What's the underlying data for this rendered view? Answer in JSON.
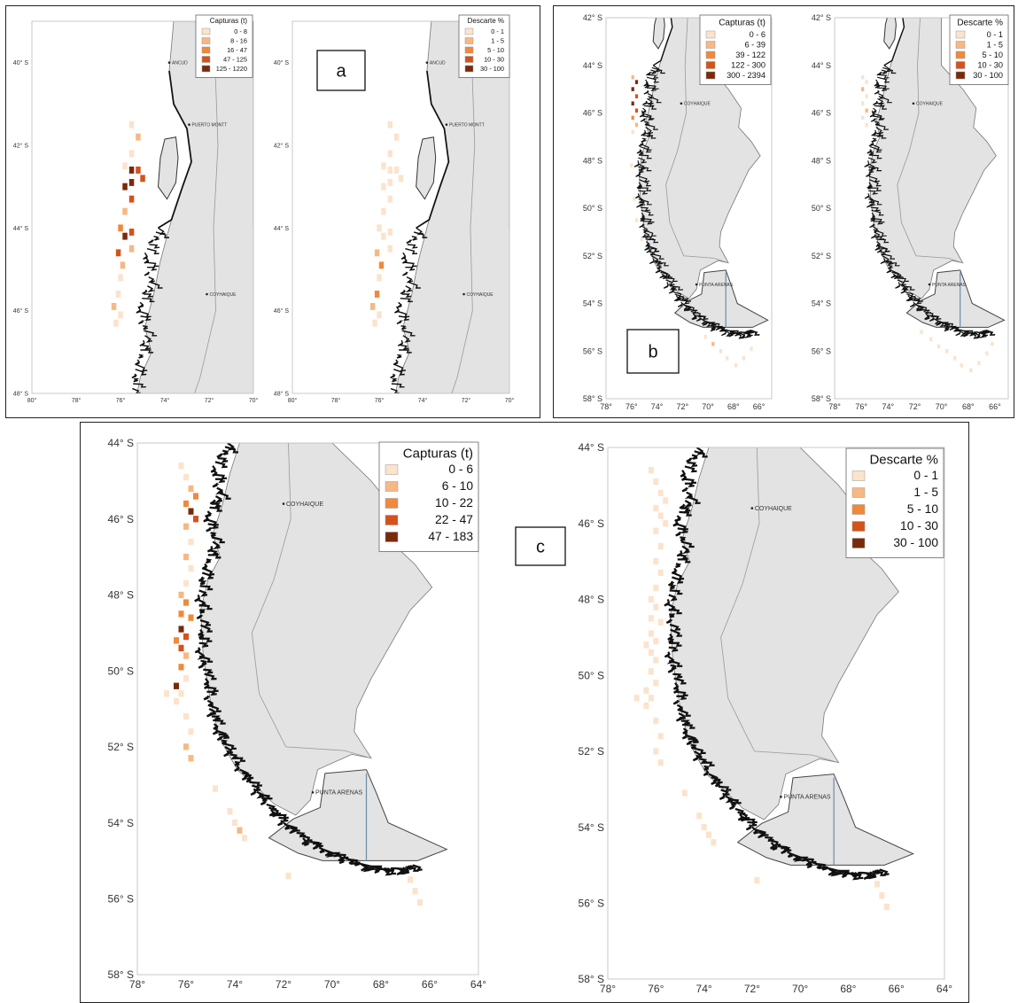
{
  "colors": {
    "land": "#e3e3e3",
    "coast": "#111111",
    "class1": "#fbe3cc",
    "class2": "#f7b883",
    "class3": "#f0893a",
    "class4": "#d5521a",
    "class5": "#7a2a0a"
  },
  "tags": {
    "a": "a",
    "b": "b",
    "c": "c"
  },
  "axis_text": {
    "a": {
      "lat": [
        "40° S",
        "42° S",
        "44° S",
        "46° S",
        "48° S"
      ],
      "lon": [
        "80°",
        "78°",
        "76°",
        "74°",
        "72°",
        "70°"
      ]
    },
    "b": {
      "lat": [
        "42° S",
        "44° S",
        "46° S",
        "48° S",
        "50° S",
        "52° S",
        "54° S",
        "56° S",
        "58° S"
      ],
      "lon": [
        "78°",
        "76°",
        "74°",
        "72°",
        "70°",
        "68°",
        "66°"
      ]
    },
    "c": {
      "lat": [
        "44° S",
        "46° S",
        "48° S",
        "50° S",
        "52° S",
        "54° S",
        "56° S",
        "58° S"
      ],
      "lon": [
        "78°",
        "76°",
        "74°",
        "72°",
        "70°",
        "68°",
        "66°",
        "64°"
      ]
    }
  },
  "cities": {
    "ancud": "ANCUD",
    "puerto_montt": "PUERTO MONTT",
    "coyhaique_a": "COYHAIQUE",
    "coyhaique_b": "COYHAIQUE",
    "coyhaique_c": "COYHAIQUE",
    "punta_arenas": "PUNTA ARENAS"
  },
  "legends": {
    "a_capturas": {
      "title": "Capturas  (t)",
      "items": [
        "0 - 8",
        "8 - 16",
        "16 - 47",
        "47 - 125",
        "125 - 1220"
      ]
    },
    "a_descarte": {
      "title": "Descarte %",
      "items": [
        "0 - 1",
        "1 - 5",
        "5 - 10",
        "10 - 30",
        "30 - 100"
      ]
    },
    "b_capturas": {
      "title": "Capturas  (t)",
      "items": [
        "0 - 6",
        "6 - 39",
        "39 - 122",
        "122 - 300",
        "300 - 2394"
      ]
    },
    "b_descarte": {
      "title": "Descarte %",
      "items": [
        "0 - 1",
        "1 - 5",
        "5 - 10",
        "10 - 30",
        "30 - 100"
      ]
    },
    "c_capturas": {
      "title": "Capturas  (t)",
      "items": [
        "0 - 6",
        "6 - 10",
        "10 - 22",
        "22 - 47",
        "47 - 183"
      ]
    },
    "c_descarte": {
      "title": "Descarte %",
      "items": [
        "0 - 1",
        "1 - 5",
        "5 - 10",
        "10 - 30",
        "30 - 100"
      ]
    }
  },
  "maps": [
    {
      "id": "a-capturas",
      "lon_range": [
        -80,
        -70
      ],
      "lat_range": [
        -48,
        -39
      ],
      "cells": [
        [
          -75.5,
          -41.5,
          1
        ],
        [
          -75.2,
          -41.8,
          2
        ],
        [
          -75.5,
          -42.2,
          1
        ],
        [
          -75.8,
          -42.5,
          1
        ],
        [
          -75.5,
          -42.6,
          5
        ],
        [
          -75.2,
          -42.6,
          4
        ],
        [
          -75.0,
          -42.8,
          4
        ],
        [
          -75.5,
          -42.9,
          5
        ],
        [
          -75.8,
          -43.0,
          5
        ],
        [
          -75.5,
          -43.3,
          4
        ],
        [
          -75.8,
          -43.6,
          2
        ],
        [
          -76.0,
          -44.0,
          3
        ],
        [
          -75.8,
          -44.2,
          5
        ],
        [
          -75.5,
          -44.1,
          4
        ],
        [
          -75.5,
          -44.5,
          2
        ],
        [
          -76.1,
          -44.6,
          4
        ],
        [
          -75.9,
          -44.9,
          2
        ],
        [
          -76.0,
          -45.2,
          1
        ],
        [
          -76.1,
          -45.6,
          1
        ],
        [
          -76.3,
          -45.9,
          2
        ],
        [
          -76.0,
          -46.1,
          1
        ],
        [
          -76.2,
          -46.3,
          1
        ]
      ]
    },
    {
      "id": "a-descarte",
      "lon_range": [
        -80,
        -70
      ],
      "lat_range": [
        -48,
        -39
      ],
      "cells": [
        [
          -75.5,
          -41.5,
          1
        ],
        [
          -75.2,
          -41.8,
          1
        ],
        [
          -75.5,
          -42.2,
          1
        ],
        [
          -75.8,
          -42.5,
          1
        ],
        [
          -75.5,
          -42.6,
          1
        ],
        [
          -75.2,
          -42.6,
          1
        ],
        [
          -75.0,
          -42.8,
          1
        ],
        [
          -75.5,
          -42.9,
          1
        ],
        [
          -75.8,
          -43.0,
          1
        ],
        [
          -75.5,
          -43.3,
          1
        ],
        [
          -75.8,
          -43.6,
          1
        ],
        [
          -76.0,
          -44.0,
          1
        ],
        [
          -75.8,
          -44.2,
          1
        ],
        [
          -75.5,
          -44.1,
          1
        ],
        [
          -75.5,
          -44.5,
          1
        ],
        [
          -76.1,
          -44.6,
          2
        ],
        [
          -75.9,
          -44.9,
          3
        ],
        [
          -76.0,
          -45.2,
          1
        ],
        [
          -76.1,
          -45.6,
          3
        ],
        [
          -76.3,
          -45.9,
          2
        ],
        [
          -76.0,
          -46.1,
          1
        ],
        [
          -76.2,
          -46.3,
          1
        ]
      ]
    },
    {
      "id": "b-capturas",
      "lon_range": [
        -78,
        -65
      ],
      "lat_range": [
        -58,
        -42
      ],
      "cells": [
        [
          -75.9,
          -44.5,
          2
        ],
        [
          -75.6,
          -44.7,
          5
        ],
        [
          -75.9,
          -45.0,
          5
        ],
        [
          -75.6,
          -45.3,
          4
        ],
        [
          -75.9,
          -45.6,
          5
        ],
        [
          -75.6,
          -45.9,
          4
        ],
        [
          -75.9,
          -46.2,
          3
        ],
        [
          -75.6,
          -46.5,
          2
        ],
        [
          -75.9,
          -46.8,
          1
        ],
        [
          -76.0,
          -48.2,
          1
        ],
        [
          -75.8,
          -49.6,
          1
        ],
        [
          -75.6,
          -50.5,
          1
        ],
        [
          -75.2,
          -51.3,
          1
        ],
        [
          -70.2,
          -55.4,
          1
        ],
        [
          -69.6,
          -55.7,
          2
        ],
        [
          -69.0,
          -56.0,
          1
        ],
        [
          -68.5,
          -56.3,
          1
        ],
        [
          -67.8,
          -56.6,
          1
        ],
        [
          -67.2,
          -56.3,
          1
        ],
        [
          -66.6,
          -55.9,
          1
        ]
      ]
    },
    {
      "id": "b-descarte",
      "lon_range": [
        -78,
        -65
      ],
      "lat_range": [
        -58,
        -42
      ],
      "cells": [
        [
          -75.9,
          -44.5,
          1
        ],
        [
          -75.6,
          -44.7,
          1
        ],
        [
          -75.9,
          -45.0,
          2
        ],
        [
          -75.6,
          -45.3,
          1
        ],
        [
          -75.9,
          -45.6,
          1
        ],
        [
          -75.6,
          -45.9,
          2
        ],
        [
          -75.9,
          -46.2,
          1
        ],
        [
          -75.6,
          -46.5,
          1
        ],
        [
          -71.5,
          -55.2,
          1
        ],
        [
          -70.8,
          -55.5,
          1
        ],
        [
          -70.2,
          -55.8,
          1
        ],
        [
          -69.6,
          -56.0,
          1
        ],
        [
          -69.0,
          -56.3,
          1
        ],
        [
          -68.5,
          -56.6,
          1
        ],
        [
          -67.8,
          -56.8,
          1
        ],
        [
          -67.2,
          -56.5,
          1
        ],
        [
          -66.6,
          -56.1,
          1
        ],
        [
          -66.2,
          -55.7,
          1
        ]
      ]
    },
    {
      "id": "c-capturas",
      "lon_range": [
        -78,
        -64
      ],
      "lat_range": [
        -58,
        -44
      ],
      "cells": [
        [
          -76.2,
          -44.6,
          1
        ],
        [
          -76.0,
          -44.9,
          1
        ],
        [
          -75.8,
          -45.2,
          2
        ],
        [
          -75.6,
          -45.4,
          3
        ],
        [
          -76.0,
          -45.6,
          3
        ],
        [
          -75.8,
          -45.8,
          5
        ],
        [
          -75.6,
          -46.0,
          4
        ],
        [
          -76.0,
          -46.2,
          2
        ],
        [
          -75.8,
          -46.6,
          1
        ],
        [
          -76.0,
          -47.0,
          2
        ],
        [
          -75.8,
          -47.3,
          1
        ],
        [
          -76.0,
          -47.7,
          1
        ],
        [
          -76.2,
          -48.0,
          2
        ],
        [
          -76.0,
          -48.2,
          3
        ],
        [
          -76.2,
          -48.5,
          3
        ],
        [
          -75.8,
          -48.6,
          3
        ],
        [
          -76.2,
          -48.9,
          5
        ],
        [
          -76.0,
          -49.1,
          4
        ],
        [
          -76.4,
          -49.2,
          3
        ],
        [
          -76.2,
          -49.4,
          4
        ],
        [
          -76.0,
          -49.6,
          2
        ],
        [
          -76.2,
          -49.9,
          3
        ],
        [
          -76.0,
          -50.2,
          1
        ],
        [
          -76.4,
          -50.4,
          5
        ],
        [
          -76.2,
          -50.6,
          1
        ],
        [
          -76.8,
          -50.6,
          1
        ],
        [
          -76.4,
          -50.8,
          1
        ],
        [
          -76.0,
          -51.2,
          1
        ],
        [
          -75.8,
          -51.6,
          1
        ],
        [
          -76.0,
          -52.0,
          2
        ],
        [
          -75.8,
          -52.3,
          2
        ],
        [
          -74.8,
          -53.1,
          1
        ],
        [
          -74.2,
          -53.7,
          1
        ],
        [
          -74.0,
          -54.0,
          1
        ],
        [
          -73.8,
          -54.2,
          2
        ],
        [
          -73.6,
          -54.4,
          1
        ],
        [
          -71.8,
          -55.4,
          1
        ],
        [
          -66.8,
          -55.5,
          1
        ],
        [
          -66.6,
          -55.8,
          1
        ],
        [
          -66.4,
          -56.1,
          1
        ]
      ]
    },
    {
      "id": "c-descarte",
      "lon_range": [
        -78,
        -64
      ],
      "lat_range": [
        -58,
        -44
      ],
      "cells": [
        [
          -76.2,
          -44.6,
          1
        ],
        [
          -76.0,
          -44.9,
          1
        ],
        [
          -75.8,
          -45.2,
          1
        ],
        [
          -75.6,
          -45.4,
          1
        ],
        [
          -76.0,
          -45.6,
          1
        ],
        [
          -75.8,
          -45.8,
          1
        ],
        [
          -75.6,
          -46.0,
          1
        ],
        [
          -76.0,
          -46.2,
          1
        ],
        [
          -75.8,
          -46.6,
          1
        ],
        [
          -76.0,
          -47.0,
          1
        ],
        [
          -75.8,
          -47.3,
          1
        ],
        [
          -76.0,
          -47.7,
          1
        ],
        [
          -76.2,
          -48.0,
          1
        ],
        [
          -76.0,
          -48.2,
          1
        ],
        [
          -76.2,
          -48.5,
          1
        ],
        [
          -75.8,
          -48.6,
          1
        ],
        [
          -76.2,
          -48.9,
          1
        ],
        [
          -76.0,
          -49.1,
          1
        ],
        [
          -76.4,
          -49.2,
          1
        ],
        [
          -76.2,
          -49.4,
          1
        ],
        [
          -76.0,
          -49.6,
          1
        ],
        [
          -76.2,
          -49.9,
          1
        ],
        [
          -76.0,
          -50.2,
          1
        ],
        [
          -76.4,
          -50.4,
          1
        ],
        [
          -76.2,
          -50.6,
          1
        ],
        [
          -76.8,
          -50.6,
          1
        ],
        [
          -76.4,
          -50.8,
          1
        ],
        [
          -76.0,
          -51.2,
          1
        ],
        [
          -75.8,
          -51.6,
          1
        ],
        [
          -76.0,
          -52.0,
          1
        ],
        [
          -75.8,
          -52.3,
          1
        ],
        [
          -74.8,
          -53.1,
          1
        ],
        [
          -74.2,
          -53.7,
          1
        ],
        [
          -74.0,
          -54.0,
          1
        ],
        [
          -73.8,
          -54.2,
          1
        ],
        [
          -73.6,
          -54.4,
          1
        ],
        [
          -71.8,
          -55.4,
          1
        ],
        [
          -66.8,
          -55.5,
          1
        ],
        [
          -66.6,
          -55.8,
          1
        ],
        [
          -66.4,
          -56.1,
          1
        ]
      ]
    }
  ]
}
